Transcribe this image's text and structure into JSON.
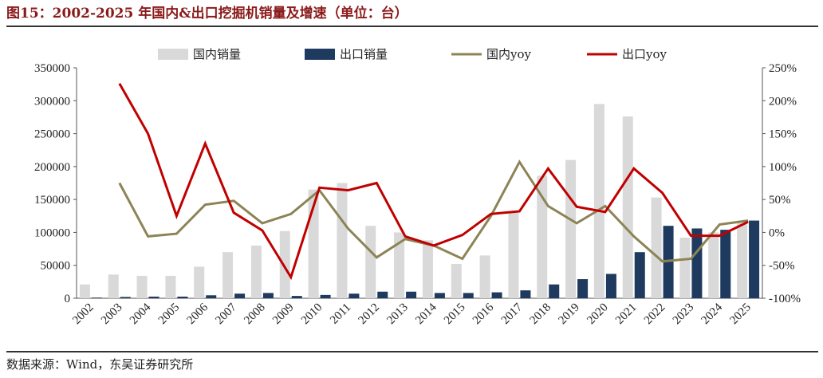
{
  "title": "图15：2002-2025 年国内&出口挖掘机销量及增速（单位：台）",
  "source": "数据来源：Wind，东吴证券研究所",
  "chart_data": {
    "type": "bar",
    "categories": [
      "2002",
      "2003",
      "2004",
      "2005",
      "2006",
      "2007",
      "2008",
      "2009",
      "2010",
      "2011",
      "2012",
      "2013",
      "2014",
      "2015",
      "2016",
      "2017",
      "2018",
      "2019",
      "2020",
      "2021",
      "2022",
      "2023",
      "2024",
      "2025"
    ],
    "series": [
      {
        "name": "国内销量",
        "kind": "bar",
        "axis": "left",
        "color": "#d9d9d9",
        "values": [
          21000,
          36000,
          34000,
          34000,
          48000,
          70000,
          80000,
          102000,
          165000,
          175000,
          110000,
          100000,
          88000,
          52000,
          65000,
          130000,
          186000,
          210000,
          295000,
          276000,
          153000,
          92000,
          100000,
          118000
        ]
      },
      {
        "name": "出口销量",
        "kind": "bar",
        "axis": "left",
        "color": "#1f3a5f",
        "values": [
          1000,
          2000,
          2500,
          2500,
          4500,
          7000,
          8000,
          3500,
          5000,
          7000,
          10000,
          10000,
          8000,
          8000,
          9000,
          12000,
          21000,
          29000,
          37000,
          70000,
          110000,
          106000,
          104000,
          118000
        ]
      },
      {
        "name": "国内yoy",
        "kind": "line",
        "axis": "right",
        "color": "#8c8456",
        "values": [
          null,
          75,
          -6,
          -2,
          42,
          48,
          14,
          28,
          64,
          6,
          -38,
          -10,
          -20,
          -40,
          25,
          107,
          40,
          14,
          40,
          -6,
          -44,
          -40,
          12,
          18
        ]
      },
      {
        "name": "出口yoy",
        "kind": "line",
        "axis": "right",
        "color": "#c00000",
        "values": [
          null,
          226,
          150,
          25,
          135,
          30,
          3,
          -68,
          68,
          64,
          75,
          -6,
          -20,
          -4,
          28,
          32,
          97,
          39,
          31,
          97,
          60,
          -5,
          -5,
          16
        ]
      }
    ],
    "y_left": {
      "min": 0,
      "max": 350000,
      "step": 50000,
      "ticks": [
        "0",
        "50000",
        "100000",
        "150000",
        "200000",
        "250000",
        "300000",
        "350000"
      ]
    },
    "y_right": {
      "min": -100,
      "max": 250,
      "step": 50,
      "ticks": [
        "-100%",
        "-50%",
        "0%",
        "50%",
        "100%",
        "150%",
        "200%",
        "250%"
      ]
    },
    "legend_position": "top-center",
    "grid": false
  }
}
